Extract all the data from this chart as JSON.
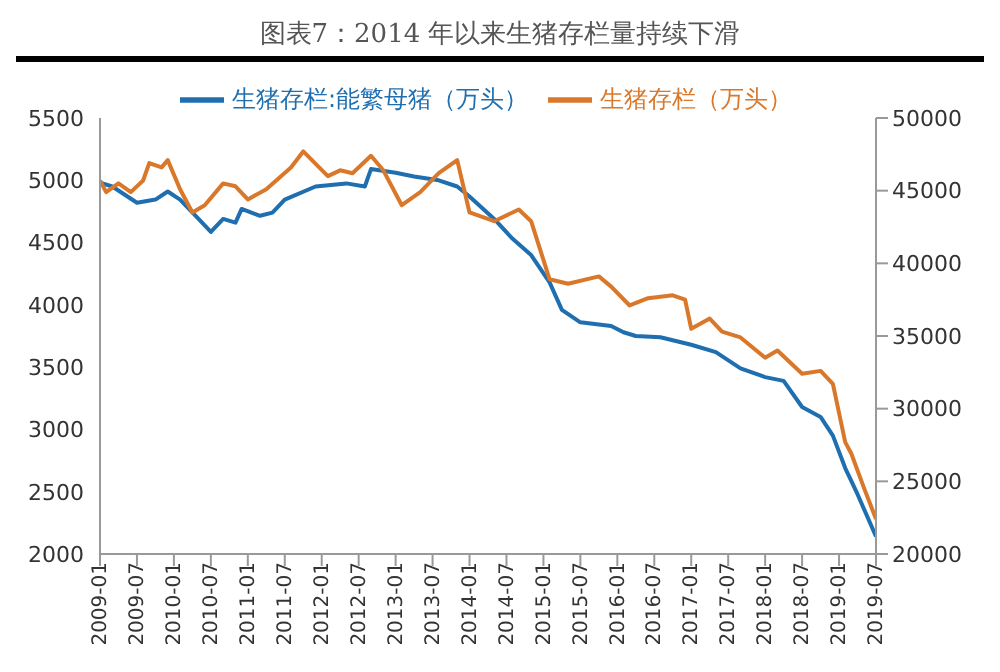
{
  "chart_data": {
    "type": "line",
    "title": "图表7：2014 年以来生猪存栏量持续下滑",
    "xlim": [
      "2009-01",
      "2019-07"
    ],
    "xticks": [
      "2009-01",
      "2009-07",
      "2010-01",
      "2010-07",
      "2011-01",
      "2011-07",
      "2012-01",
      "2012-07",
      "2013-01",
      "2013-07",
      "2014-01",
      "2014-07",
      "2015-01",
      "2015-07",
      "2016-01",
      "2016-07",
      "2017-01",
      "2017-07",
      "2018-01",
      "2018-07",
      "2019-01",
      "2019-07"
    ],
    "ylim": [
      2000,
      5500
    ],
    "yticks": [
      2000,
      2500,
      3000,
      3500,
      4000,
      4500,
      5000,
      5500
    ],
    "y2lim": [
      20000,
      50000
    ],
    "y2ticks": [
      20000,
      25000,
      30000,
      35000,
      40000,
      45000,
      50000
    ],
    "grid": false,
    "legend": "top",
    "marker": "none",
    "line_style": "solid",
    "series": [
      {
        "name": "生猪存栏:能繁母猪（万头）",
        "color": "#1f6fb0",
        "x": [
          "2009-01",
          "2009-03",
          "2009-07",
          "2009-10",
          "2009-12",
          "2010-02",
          "2010-05",
          "2010-07",
          "2010-09",
          "2010-11",
          "2010-12",
          "2011-03",
          "2011-05",
          "2011-07",
          "2011-12",
          "2012-05",
          "2012-08",
          "2012-09",
          "2013-01",
          "2013-04",
          "2013-08",
          "2013-11",
          "2014-01",
          "2014-05",
          "2014-08",
          "2014-11",
          "2015-02",
          "2015-04",
          "2015-07",
          "2015-12",
          "2016-02",
          "2016-04",
          "2016-08",
          "2017-01",
          "2017-05",
          "2017-09",
          "2018-01",
          "2018-04",
          "2018-07",
          "2018-10",
          "2018-12",
          "2019-02",
          "2019-04",
          "2019-07"
        ],
        "values": [
          4980,
          4950,
          4820,
          4845,
          4910,
          4845,
          4690,
          4585,
          4690,
          4660,
          4770,
          4715,
          4740,
          4845,
          4950,
          4975,
          4950,
          5090,
          5060,
          5030,
          5000,
          4950,
          4870,
          4690,
          4530,
          4400,
          4180,
          3960,
          3860,
          3830,
          3780,
          3750,
          3740,
          3680,
          3620,
          3490,
          3420,
          3390,
          3180,
          3100,
          2950,
          2690,
          2480,
          2140
        ]
      },
      {
        "name": "生猪存栏（万头）",
        "color": "#d9782a",
        "axis": "y2",
        "x": [
          "2009-01",
          "2009-02",
          "2009-04",
          "2009-06",
          "2009-08",
          "2009-09",
          "2009-11",
          "2009-12",
          "2010-02",
          "2010-04",
          "2010-06",
          "2010-09",
          "2010-11",
          "2011-01",
          "2011-04",
          "2011-08",
          "2011-10",
          "2012-02",
          "2012-04",
          "2012-06",
          "2012-09",
          "2012-11",
          "2013-02",
          "2013-05",
          "2013-08",
          "2013-11",
          "2014-01",
          "2014-05",
          "2014-09",
          "2014-11",
          "2015-02",
          "2015-05",
          "2015-10",
          "2015-12",
          "2016-03",
          "2016-06",
          "2016-10",
          "2016-12",
          "2017-01",
          "2017-04",
          "2017-06",
          "2017-09",
          "2018-01",
          "2018-03",
          "2018-07",
          "2018-10",
          "2018-12",
          "2019-02",
          "2019-03",
          "2019-05",
          "2019-07"
        ],
        "values": [
          45700,
          44900,
          45500,
          44900,
          45700,
          46900,
          46600,
          47100,
          45100,
          43500,
          44000,
          45500,
          45300,
          44400,
          45100,
          46600,
          47700,
          46000,
          46400,
          46200,
          47400,
          46400,
          44000,
          44900,
          46200,
          47100,
          43500,
          42900,
          43700,
          42900,
          38900,
          38600,
          39100,
          38400,
          37100,
          37600,
          37800,
          37500,
          35500,
          36200,
          35300,
          34900,
          33500,
          34000,
          32400,
          32600,
          31700,
          27700,
          26900,
          24600,
          22400
        ]
      }
    ]
  }
}
